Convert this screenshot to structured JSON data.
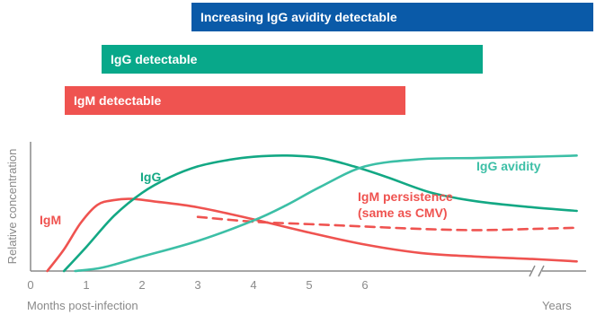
{
  "colors": {
    "igm": "#ef5350",
    "igg": "#13a884",
    "avidity": "#3cbfa6",
    "avidity_bar": "#0a5aa8",
    "axis": "#8a8a8a"
  },
  "bars": [
    {
      "label": "Increasing IgG avidity detectable",
      "color": "#0a5aa8",
      "start_months": 2.7,
      "end": "Years"
    },
    {
      "label": "IgG detectable",
      "color": "#08a88a",
      "start_months": 1.2,
      "end_months": 7.9
    },
    {
      "label": "IgM detectable",
      "color": "#ef5350",
      "start_months": 0.6,
      "end_months": 6.6
    }
  ],
  "chart_data": {
    "type": "line",
    "title": "",
    "ylabel": "Relative concentration",
    "xlabel": "Months post-infection",
    "x_ticks": [
      "0",
      "1",
      "2",
      "3",
      "4",
      "5",
      "6"
    ],
    "x_end_label": "Years",
    "axis_break": true,
    "xlim": [
      0,
      10
    ],
    "ylim": [
      0,
      100
    ],
    "series": [
      {
        "name": "IgM",
        "color": "#ef5350",
        "style": "solid",
        "points": [
          [
            0.3,
            0
          ],
          [
            0.6,
            18
          ],
          [
            0.9,
            40
          ],
          [
            1.2,
            55
          ],
          [
            1.5,
            59
          ],
          [
            1.8,
            60
          ],
          [
            2.2,
            58
          ],
          [
            3,
            53
          ],
          [
            4,
            43
          ],
          [
            5,
            32
          ],
          [
            6,
            22
          ],
          [
            7,
            15
          ],
          [
            8,
            12
          ],
          [
            9,
            10
          ],
          [
            9.8,
            8
          ]
        ]
      },
      {
        "name": "IgM persistence (same as CMV)",
        "color": "#ef5350",
        "style": "dashed",
        "points": [
          [
            3,
            45
          ],
          [
            4,
            41
          ],
          [
            5,
            39
          ],
          [
            6,
            37
          ],
          [
            7,
            35
          ],
          [
            8,
            34
          ],
          [
            9,
            35
          ],
          [
            9.8,
            36
          ]
        ]
      },
      {
        "name": "IgG",
        "color": "#13a884",
        "style": "solid",
        "points": [
          [
            0.6,
            0
          ],
          [
            1,
            20
          ],
          [
            1.5,
            46
          ],
          [
            2,
            65
          ],
          [
            2.5,
            78
          ],
          [
            3,
            87
          ],
          [
            3.5,
            92
          ],
          [
            4,
            95
          ],
          [
            4.6,
            96
          ],
          [
            5.2,
            94
          ],
          [
            5.8,
            87
          ],
          [
            6.4,
            78
          ],
          [
            7.2,
            65
          ],
          [
            8,
            58
          ],
          [
            9,
            53
          ],
          [
            9.8,
            50
          ]
        ]
      },
      {
        "name": "IgG avidity",
        "color": "#3cbfa6",
        "style": "solid",
        "points": [
          [
            0.8,
            0
          ],
          [
            1.3,
            3
          ],
          [
            2,
            12
          ],
          [
            3,
            25
          ],
          [
            4,
            42
          ],
          [
            4.6,
            55
          ],
          [
            5.2,
            70
          ],
          [
            6,
            87
          ],
          [
            7,
            93
          ],
          [
            8,
            94
          ],
          [
            9,
            95
          ],
          [
            9.8,
            96
          ]
        ]
      }
    ]
  },
  "labels": {
    "igm": "IgM",
    "igg": "IgG",
    "avidity": "IgG avidity",
    "persistence_line1": "IgM persistence",
    "persistence_line2": "(same as CMV)"
  }
}
